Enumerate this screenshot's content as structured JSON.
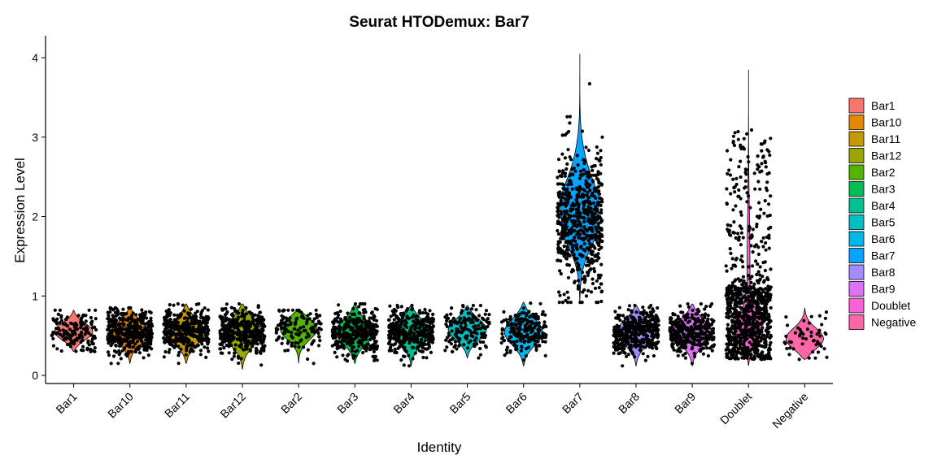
{
  "chart_data": {
    "type": "violin",
    "title": "Seurat HTODemux: Bar7",
    "xlabel": "Identity",
    "ylabel": "Expression Level",
    "ylim": [
      -0.1,
      4.25
    ],
    "yticks": [
      0,
      1,
      2,
      3,
      4
    ],
    "grid": false,
    "legend_position": "right",
    "points_jittered": true,
    "categories": [
      "Bar1",
      "Bar10",
      "Bar11",
      "Bar12",
      "Bar2",
      "Bar3",
      "Bar4",
      "Bar5",
      "Bar6",
      "Bar7",
      "Bar8",
      "Bar9",
      "Doublet",
      "Negative"
    ],
    "series": [
      {
        "name": "Bar1",
        "color": "#F8766D",
        "min": 0.3,
        "max": 0.82,
        "center": 0.55,
        "n_points": 150
      },
      {
        "name": "Bar10",
        "color": "#E38900",
        "min": 0.15,
        "max": 0.85,
        "center": 0.55,
        "n_points": 400
      },
      {
        "name": "Bar11",
        "color": "#C49A00",
        "min": 0.15,
        "max": 0.9,
        "center": 0.55,
        "n_points": 380
      },
      {
        "name": "Bar12",
        "color": "#99A800",
        "min": 0.08,
        "max": 0.9,
        "center": 0.55,
        "n_points": 400
      },
      {
        "name": "Bar2",
        "color": "#53B400",
        "min": 0.15,
        "max": 0.82,
        "center": 0.6,
        "n_points": 130
      },
      {
        "name": "Bar3",
        "color": "#00BC56",
        "min": 0.15,
        "max": 0.9,
        "center": 0.55,
        "n_points": 360
      },
      {
        "name": "Bar4",
        "color": "#00C094",
        "min": 0.12,
        "max": 0.88,
        "center": 0.55,
        "n_points": 360
      },
      {
        "name": "Bar5",
        "color": "#00BFC4",
        "min": 0.22,
        "max": 0.88,
        "center": 0.58,
        "n_points": 160
      },
      {
        "name": "Bar6",
        "color": "#00B6EB",
        "min": 0.12,
        "max": 0.92,
        "center": 0.55,
        "n_points": 200
      },
      {
        "name": "Bar7",
        "color": "#06A4FF",
        "min": 0.92,
        "max": 4.05,
        "center": 1.95,
        "n_points": 600
      },
      {
        "name": "Bar8",
        "color": "#A58AFF",
        "min": 0.12,
        "max": 0.88,
        "center": 0.55,
        "n_points": 380
      },
      {
        "name": "Bar9",
        "color": "#DF70F8",
        "min": 0.12,
        "max": 0.9,
        "center": 0.55,
        "n_points": 340
      },
      {
        "name": "Doublet",
        "color": "#FB61D7",
        "min": 0.12,
        "max": 3.85,
        "center": 0.6,
        "n_points": 900
      },
      {
        "name": "Negative",
        "color": "#FF66A8",
        "min": 0.2,
        "max": 0.85,
        "center": 0.45,
        "n_points": 50
      }
    ]
  }
}
